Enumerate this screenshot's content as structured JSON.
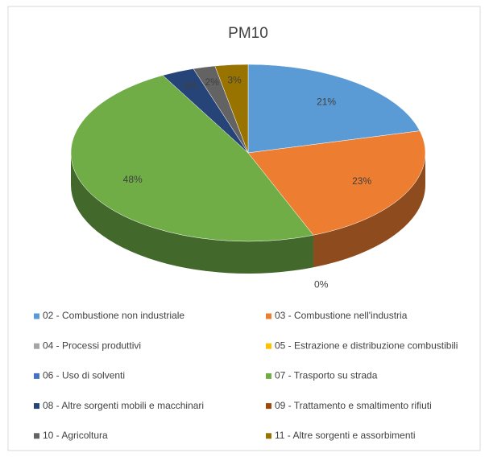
{
  "chart_data": {
    "type": "pie",
    "title": "PM10",
    "categories": [
      "02 - Combustione non industriale",
      "03 - Combustione nell'industria",
      "04 - Processi produttivi",
      "05 - Estrazione e distribuzione combustibili",
      "06 - Uso di solventi",
      "07 - Trasporto su strada",
      "08 - Altre sorgenti mobili e macchinari",
      "09 - Trattamento e smaltimento rifiuti",
      "10 - Agricoltura",
      "11 - Altre sorgenti e assorbimenti"
    ],
    "values": [
      21,
      23,
      0,
      0,
      0,
      48,
      3,
      0,
      2,
      3
    ],
    "value_labels": [
      "21%",
      "23%",
      "0%",
      null,
      null,
      "48%",
      "3%",
      null,
      "2%",
      "3%"
    ],
    "colors": [
      "#5b9bd5",
      "#ed7d31",
      "#a5a5a5",
      "#ffc000",
      "#4472c4",
      "#70ad47",
      "#264478",
      "#9e480e",
      "#636363",
      "#997300"
    ],
    "legend": "bottom"
  }
}
